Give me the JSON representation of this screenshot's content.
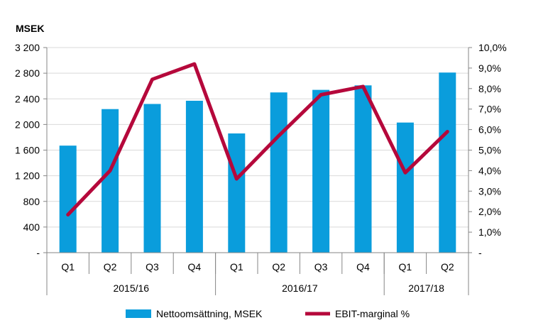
{
  "chart_data": {
    "type": "bar",
    "y_unit_label": "MSEK",
    "categories": [
      "Q1",
      "Q2",
      "Q3",
      "Q4",
      "Q1",
      "Q2",
      "Q3",
      "Q4",
      "Q1",
      "Q2"
    ],
    "groups": [
      {
        "label": "2015/16",
        "start": 0,
        "count": 4
      },
      {
        "label": "2016/17",
        "start": 4,
        "count": 4
      },
      {
        "label": "2017/18",
        "start": 8,
        "count": 2
      }
    ],
    "series": [
      {
        "name": "Nettoomsättning, MSEK",
        "type": "bar",
        "axis": "left",
        "color": "#0a9ddc",
        "values": [
          1670,
          2240,
          2320,
          2370,
          1860,
          2500,
          2540,
          2610,
          2030,
          2810
        ]
      },
      {
        "name": "EBIT-marginal %",
        "type": "line",
        "axis": "right",
        "color": "#b5083b",
        "values": [
          1.85,
          4.0,
          8.45,
          9.2,
          3.6,
          5.7,
          7.7,
          8.1,
          3.9,
          5.9
        ]
      }
    ],
    "left_axis": {
      "min": 0,
      "max": 3200,
      "step": 400,
      "tick_labels": [
        "-",
        "400",
        "800",
        "1 200",
        "1 600",
        "2 000",
        "2 400",
        "2 800",
        "3 200"
      ]
    },
    "right_axis": {
      "min": 0,
      "max": 10,
      "step": 1,
      "tick_labels": [
        "-",
        "1,0%",
        "2,0%",
        "3,0%",
        "4,0%",
        "5,0%",
        "6,0%",
        "7,0%",
        "8,0%",
        "9,0%",
        "10,0%"
      ]
    },
    "grid": true,
    "legend": "bottom"
  }
}
